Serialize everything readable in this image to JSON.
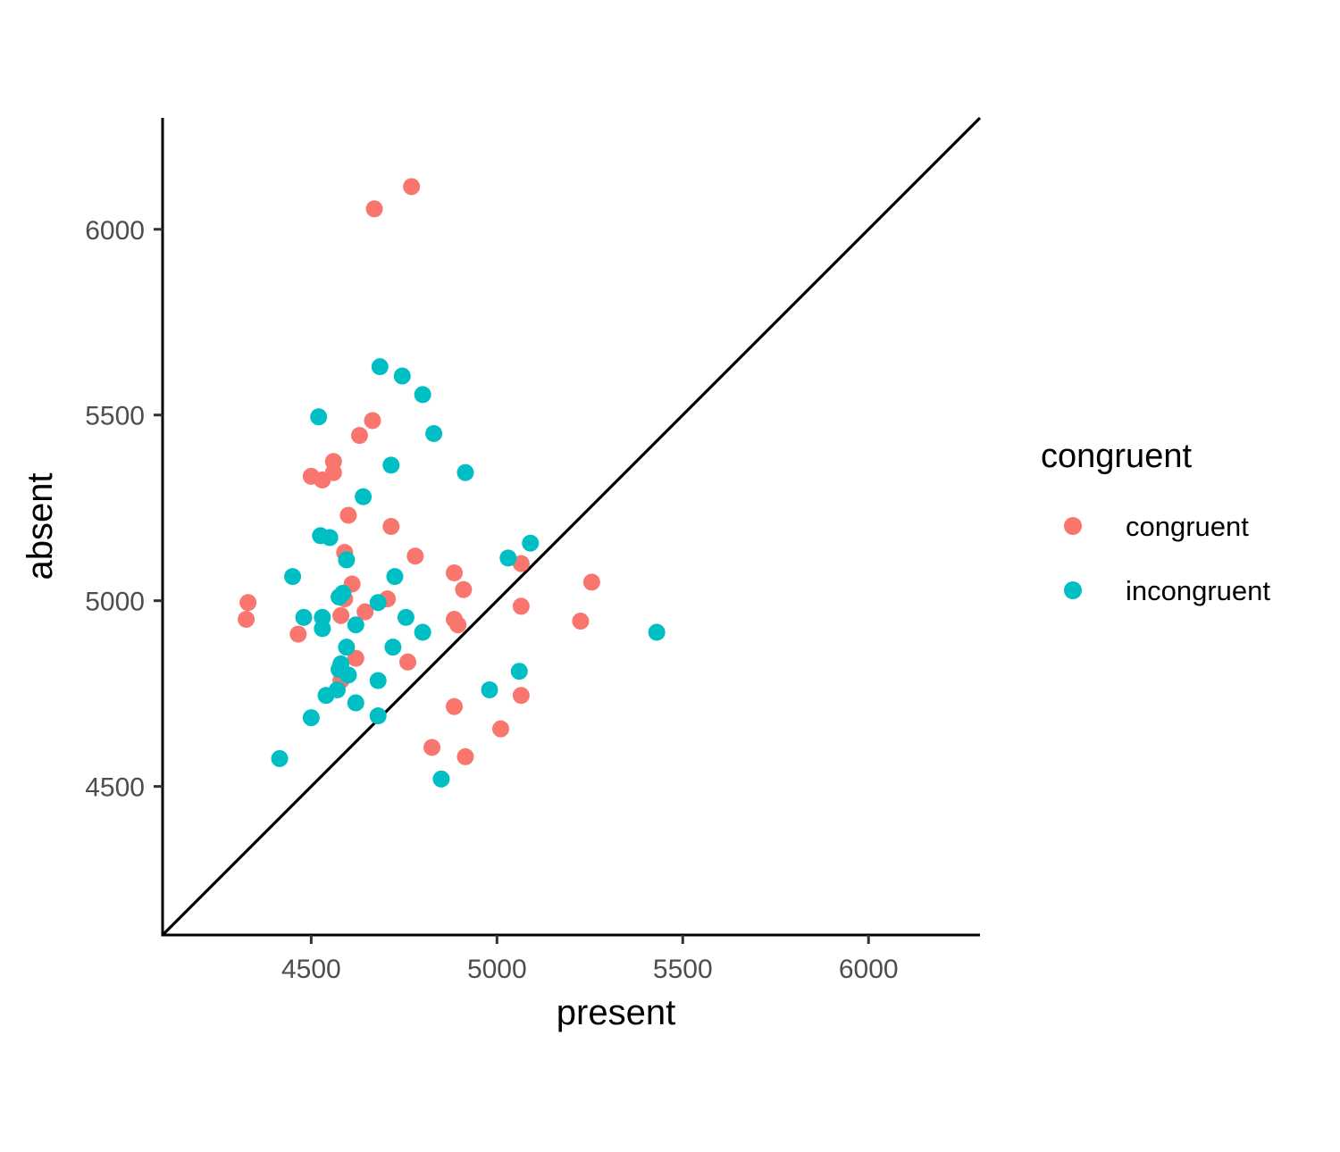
{
  "chart_data": {
    "type": "scatter",
    "title": "",
    "xlabel": "present",
    "ylabel": "absent",
    "xlim": [
      4100,
      6300
    ],
    "ylim": [
      4100,
      6300
    ],
    "x_ticks": [
      4500,
      5000,
      5500,
      6000
    ],
    "y_ticks": [
      4500,
      5000,
      5500,
      6000
    ],
    "grid": false,
    "reference_line": {
      "type": "identity",
      "color": "#000000"
    },
    "legend": {
      "title": "congruent",
      "position": "right",
      "entries": [
        {
          "label": "congruent",
          "color": "#F8766D"
        },
        {
          "label": "incongruent",
          "color": "#00BFC4"
        }
      ]
    },
    "series": [
      {
        "name": "congruent",
        "color": "#F8766D",
        "points": [
          [
            4770,
            6115
          ],
          [
            4670,
            6055
          ],
          [
            4665,
            5485
          ],
          [
            4630,
            5445
          ],
          [
            4560,
            5375
          ],
          [
            4500,
            5335
          ],
          [
            4530,
            5325
          ],
          [
            4560,
            5345
          ],
          [
            4600,
            5230
          ],
          [
            4715,
            5200
          ],
          [
            4780,
            5120
          ],
          [
            4590,
            5130
          ],
          [
            5065,
            5100
          ],
          [
            4885,
            5075
          ],
          [
            5255,
            5050
          ],
          [
            4610,
            5045
          ],
          [
            4910,
            5030
          ],
          [
            4705,
            5005
          ],
          [
            4590,
            5005
          ],
          [
            4330,
            4995
          ],
          [
            4645,
            4970
          ],
          [
            5065,
            4985
          ],
          [
            4580,
            4960
          ],
          [
            4325,
            4950
          ],
          [
            4885,
            4950
          ],
          [
            4895,
            4935
          ],
          [
            5225,
            4945
          ],
          [
            4465,
            4910
          ],
          [
            4620,
            4845
          ],
          [
            4760,
            4835
          ],
          [
            4580,
            4785
          ],
          [
            5065,
            4745
          ],
          [
            4885,
            4715
          ],
          [
            5010,
            4655
          ],
          [
            4825,
            4605
          ],
          [
            4915,
            4580
          ]
        ]
      },
      {
        "name": "incongruent",
        "color": "#00BFC4",
        "points": [
          [
            4685,
            5630
          ],
          [
            4745,
            5605
          ],
          [
            4800,
            5555
          ],
          [
            4520,
            5495
          ],
          [
            4830,
            5450
          ],
          [
            4715,
            5365
          ],
          [
            4915,
            5345
          ],
          [
            4640,
            5280
          ],
          [
            4525,
            5175
          ],
          [
            4550,
            5170
          ],
          [
            5090,
            5155
          ],
          [
            5030,
            5115
          ],
          [
            4595,
            5110
          ],
          [
            4725,
            5065
          ],
          [
            4450,
            5065
          ],
          [
            4575,
            5010
          ],
          [
            4585,
            5020
          ],
          [
            4680,
            4995
          ],
          [
            4480,
            4955
          ],
          [
            4530,
            4955
          ],
          [
            4755,
            4955
          ],
          [
            4620,
            4935
          ],
          [
            4530,
            4925
          ],
          [
            4800,
            4915
          ],
          [
            5430,
            4915
          ],
          [
            4720,
            4875
          ],
          [
            4595,
            4875
          ],
          [
            4580,
            4830
          ],
          [
            4575,
            4815
          ],
          [
            4600,
            4800
          ],
          [
            5060,
            4810
          ],
          [
            4680,
            4785
          ],
          [
            4980,
            4760
          ],
          [
            4570,
            4760
          ],
          [
            4540,
            4745
          ],
          [
            4620,
            4725
          ],
          [
            4500,
            4685
          ],
          [
            4680,
            4690
          ],
          [
            4415,
            4575
          ],
          [
            4850,
            4520
          ]
        ]
      }
    ]
  }
}
